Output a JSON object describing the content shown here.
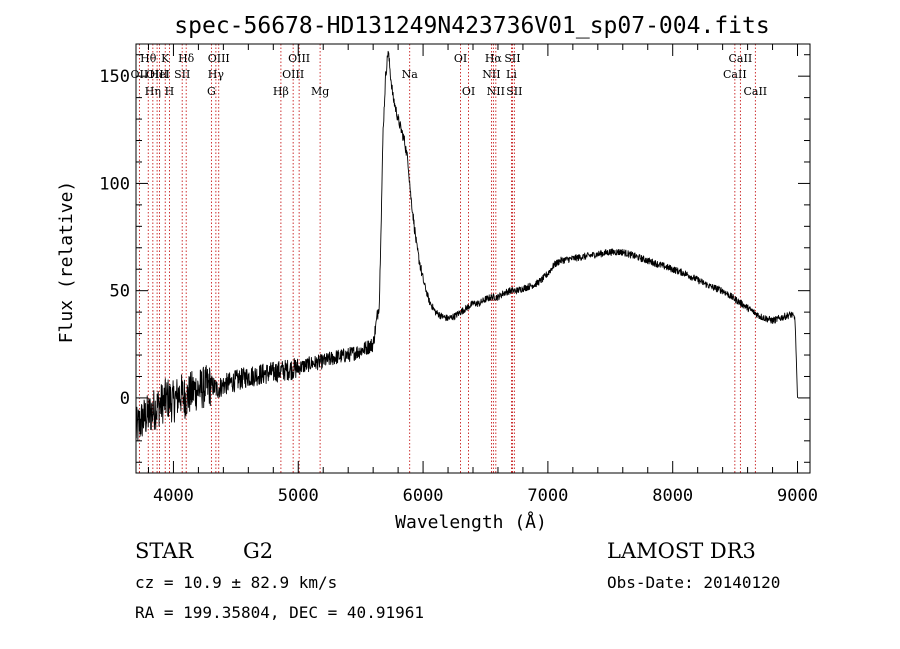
{
  "chart_data": {
    "type": "line",
    "title": "spec-56678-HD131249N423736V01_sp07-004.fits",
    "xlabel": "Wavelength (Å)",
    "ylabel": "Flux (relative)",
    "xlim": [
      3700,
      9100
    ],
    "ylim": [
      -35,
      165
    ],
    "xticks": [
      4000,
      5000,
      6000,
      7000,
      8000,
      9000
    ],
    "yticks": [
      0,
      50,
      100,
      150
    ],
    "grid": false,
    "series": [
      {
        "name": "spectrum",
        "color": "#000000",
        "x": [
          3700,
          3750,
          3800,
          3850,
          3900,
          3950,
          4000,
          4050,
          4100,
          4150,
          4200,
          4250,
          4300,
          4350,
          4400,
          4450,
          4500,
          4600,
          4700,
          4800,
          4900,
          5000,
          5100,
          5200,
          5300,
          5400,
          5500,
          5600,
          5650,
          5680,
          5700,
          5720,
          5740,
          5760,
          5800,
          5850,
          5880,
          5900,
          5950,
          6000,
          6050,
          6100,
          6150,
          6200,
          6250,
          6300,
          6350,
          6400,
          6450,
          6500,
          6550,
          6600,
          6650,
          6700,
          6750,
          6800,
          6850,
          6900,
          6950,
          7000,
          7050,
          7100,
          7200,
          7300,
          7400,
          7500,
          7600,
          7700,
          7800,
          7900,
          8000,
          8100,
          8200,
          8300,
          8400,
          8500,
          8600,
          8650,
          8700,
          8750,
          8800,
          8850,
          8900,
          8950,
          8980,
          9000
        ],
        "y": [
          -15,
          -10,
          -8,
          -5,
          -3,
          0,
          -2,
          2,
          0,
          3,
          4,
          5,
          6,
          4,
          6,
          7,
          8,
          10,
          11,
          12,
          13,
          14,
          16,
          17,
          19,
          20,
          22,
          25,
          45,
          125,
          150,
          162,
          150,
          140,
          130,
          120,
          110,
          95,
          70,
          55,
          45,
          40,
          38,
          37,
          38,
          40,
          42,
          44,
          44,
          46,
          47,
          47,
          49,
          50,
          50,
          51,
          52,
          53,
          55,
          58,
          62,
          64,
          65,
          66,
          67,
          68,
          68,
          66,
          64,
          62,
          60,
          58,
          55,
          52,
          50,
          46,
          42,
          40,
          38,
          37,
          36,
          37,
          38,
          39,
          37,
          0
        ]
      }
    ],
    "lines": [
      {
        "wl": 3727,
        "label": "OII",
        "row": 2
      },
      {
        "wl": 3798,
        "label": "Hθ",
        "row": 1
      },
      {
        "wl": 3835,
        "label": "Hη",
        "row": 3
      },
      {
        "wl": 3869,
        "label": "OIII",
        "row": 2
      },
      {
        "wl": 3889,
        "label": "HeI",
        "row": 2
      },
      {
        "wl": 3934,
        "label": "K",
        "row": 1
      },
      {
        "wl": 3968,
        "label": "H",
        "row": 3
      },
      {
        "wl": 4070,
        "label": "SII",
        "row": 2
      },
      {
        "wl": 4102,
        "label": "Hδ",
        "row": 1
      },
      {
        "wl": 4304,
        "label": "G",
        "row": 3
      },
      {
        "wl": 4340,
        "label": "Hγ",
        "row": 2
      },
      {
        "wl": 4363,
        "label": "OIII",
        "row": 1
      },
      {
        "wl": 4861,
        "label": "Hβ",
        "row": 3
      },
      {
        "wl": 4959,
        "label": "OIII",
        "row": 2
      },
      {
        "wl": 5007,
        "label": "OIII",
        "row": 1
      },
      {
        "wl": 5175,
        "label": "Mg",
        "row": 3
      },
      {
        "wl": 5893,
        "label": "Na",
        "row": 2
      },
      {
        "wl": 6300,
        "label": "OI",
        "row": 1
      },
      {
        "wl": 6364,
        "label": "OI",
        "row": 3
      },
      {
        "wl": 6548,
        "label": "NII",
        "row": 2
      },
      {
        "wl": 6563,
        "label": "Hα",
        "row": 1
      },
      {
        "wl": 6583,
        "label": "NII",
        "row": 3
      },
      {
        "wl": 6708,
        "label": "Li",
        "row": 2
      },
      {
        "wl": 6716,
        "label": "SII",
        "row": 1
      },
      {
        "wl": 6731,
        "label": "SII",
        "row": 3
      },
      {
        "wl": 8498,
        "label": "CaII",
        "row": 2
      },
      {
        "wl": 8542,
        "label": "CaII",
        "row": 1
      },
      {
        "wl": 8662,
        "label": "CaII",
        "row": 3
      }
    ]
  },
  "info": {
    "object_class": "STAR",
    "subclass": "G2",
    "survey": "LAMOST DR3",
    "cz": "cz = 10.9 ± 82.9 km/s",
    "obs_date": "Obs-Date: 20140120",
    "coords": "RA = 199.35804, DEC =  40.91961"
  }
}
